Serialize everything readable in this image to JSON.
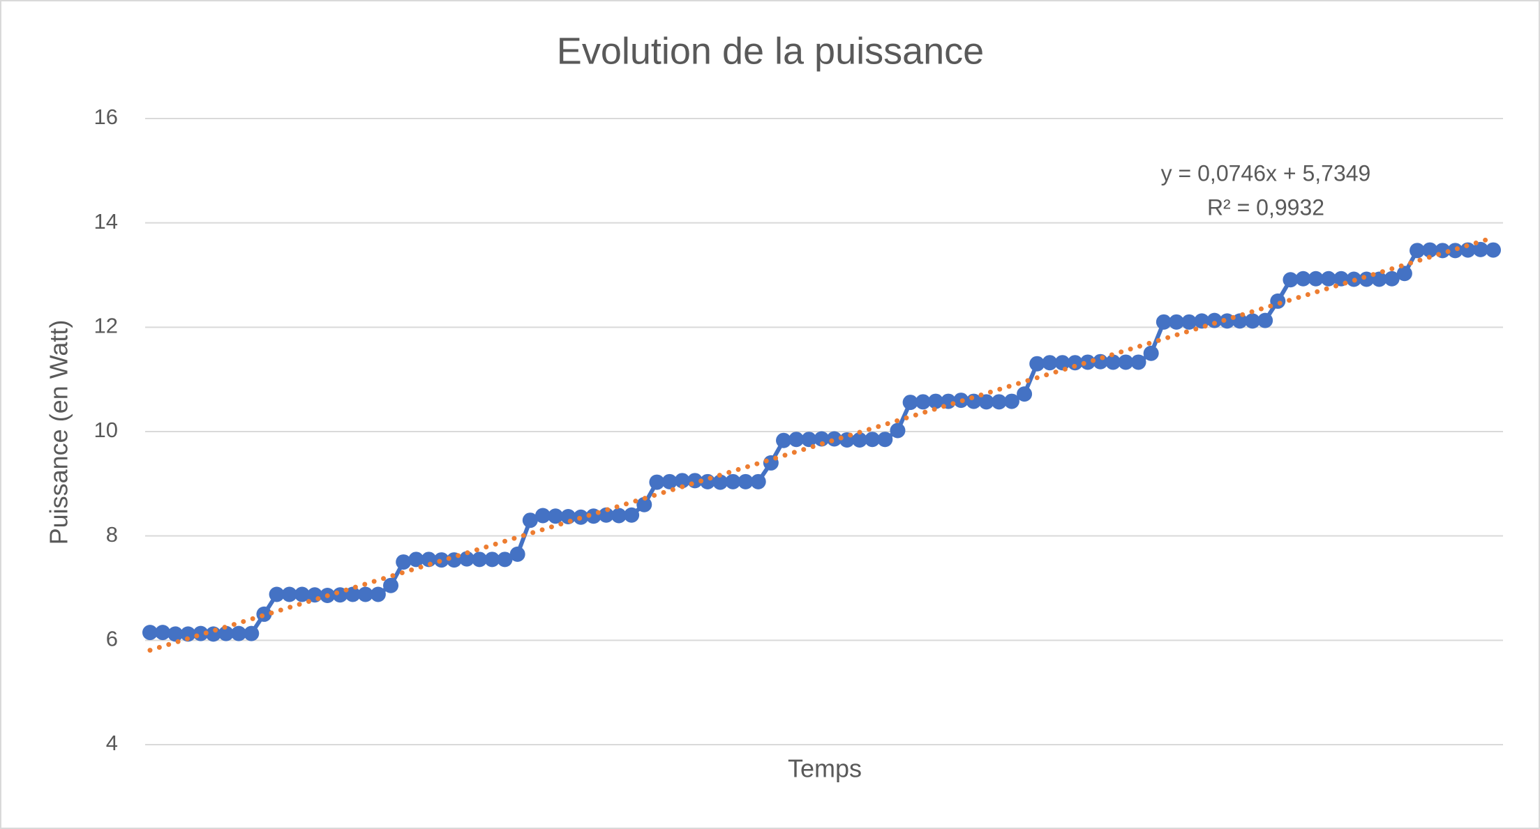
{
  "chart_data": {
    "type": "line",
    "title": "Evolution de la puissance",
    "x_label": "Temps",
    "y_label": "Puissance (en Watt)",
    "ylim": [
      4,
      16
    ],
    "yticks": [
      4,
      6,
      8,
      10,
      12,
      14,
      16
    ],
    "grid": true,
    "series": [
      {
        "name": "Puissance",
        "color": "#4472c4",
        "values": [
          6.15,
          6.15,
          6.12,
          6.12,
          6.13,
          6.12,
          6.13,
          6.13,
          6.13,
          6.5,
          6.88,
          6.88,
          6.88,
          6.87,
          6.86,
          6.87,
          6.88,
          6.88,
          6.88,
          7.05,
          7.5,
          7.55,
          7.55,
          7.54,
          7.54,
          7.56,
          7.55,
          7.55,
          7.55,
          7.65,
          8.3,
          8.39,
          8.38,
          8.37,
          8.36,
          8.38,
          8.4,
          8.39,
          8.4,
          8.6,
          9.03,
          9.04,
          9.06,
          9.06,
          9.04,
          9.03,
          9.04,
          9.04,
          9.04,
          9.4,
          9.83,
          9.85,
          9.85,
          9.86,
          9.86,
          9.84,
          9.84,
          9.85,
          9.85,
          10.02,
          10.56,
          10.57,
          10.58,
          10.58,
          10.6,
          10.58,
          10.57,
          10.57,
          10.58,
          10.72,
          11.3,
          11.32,
          11.32,
          11.32,
          11.33,
          11.34,
          11.33,
          11.33,
          11.33,
          11.5,
          12.1,
          12.1,
          12.1,
          12.12,
          12.13,
          12.12,
          12.12,
          12.12,
          12.13,
          12.5,
          12.91,
          12.93,
          12.93,
          12.93,
          12.93,
          12.92,
          12.92,
          12.92,
          12.93,
          13.03,
          13.47,
          13.48,
          13.47,
          13.47,
          13.48,
          13.49,
          13.48
        ]
      }
    ],
    "trendline": {
      "color": "#ed7d31",
      "slope": 0.0746,
      "intercept": 5.7349,
      "label": "y = 0,0746x + 5,7349",
      "r2_label": "R² = 0,9932"
    }
  }
}
